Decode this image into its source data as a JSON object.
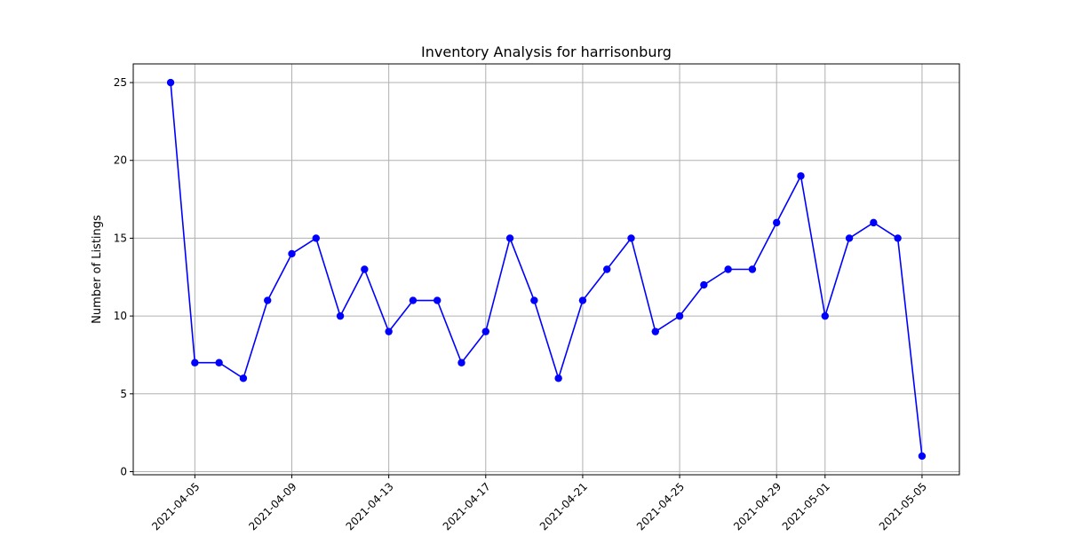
{
  "chart_data": {
    "type": "line",
    "title": "Inventory Analysis for harrisonburg",
    "xlabel": "",
    "ylabel": "Number of Listings",
    "grid": true,
    "legend": "none",
    "xlim": [
      "2021-04-02T11:00",
      "2021-05-06T13:00"
    ],
    "ylim": [
      -0.2,
      26.2
    ],
    "x_ticks": [
      "2021-04-05",
      "2021-04-09",
      "2021-04-13",
      "2021-04-17",
      "2021-04-21",
      "2021-04-25",
      "2021-04-29",
      "2021-05-01",
      "2021-05-05"
    ],
    "y_ticks": [
      0,
      5,
      10,
      15,
      20,
      25
    ],
    "colors": {
      "series": "#0000ff",
      "grid": "#b0b0b0",
      "axes": "#000000"
    },
    "series": [
      {
        "x": [
          "2021-04-04",
          "2021-04-05",
          "2021-04-06",
          "2021-04-07",
          "2021-04-08",
          "2021-04-09",
          "2021-04-10",
          "2021-04-11",
          "2021-04-12",
          "2021-04-13",
          "2021-04-14",
          "2021-04-15",
          "2021-04-16",
          "2021-04-17",
          "2021-04-18",
          "2021-04-19",
          "2021-04-20",
          "2021-04-21",
          "2021-04-22",
          "2021-04-23",
          "2021-04-24",
          "2021-04-25",
          "2021-04-26",
          "2021-04-27",
          "2021-04-28",
          "2021-04-29",
          "2021-04-30",
          "2021-05-01",
          "2021-05-02",
          "2021-05-03",
          "2021-05-04",
          "2021-05-05"
        ],
        "values": [
          25,
          7,
          7,
          6,
          11,
          14,
          15,
          10,
          13,
          9,
          11,
          11,
          7,
          9,
          15,
          11,
          6,
          11,
          13,
          15,
          9,
          10,
          12,
          13,
          13,
          16,
          19,
          10,
          15,
          16,
          15,
          1
        ],
        "marker": "circle"
      }
    ]
  }
}
